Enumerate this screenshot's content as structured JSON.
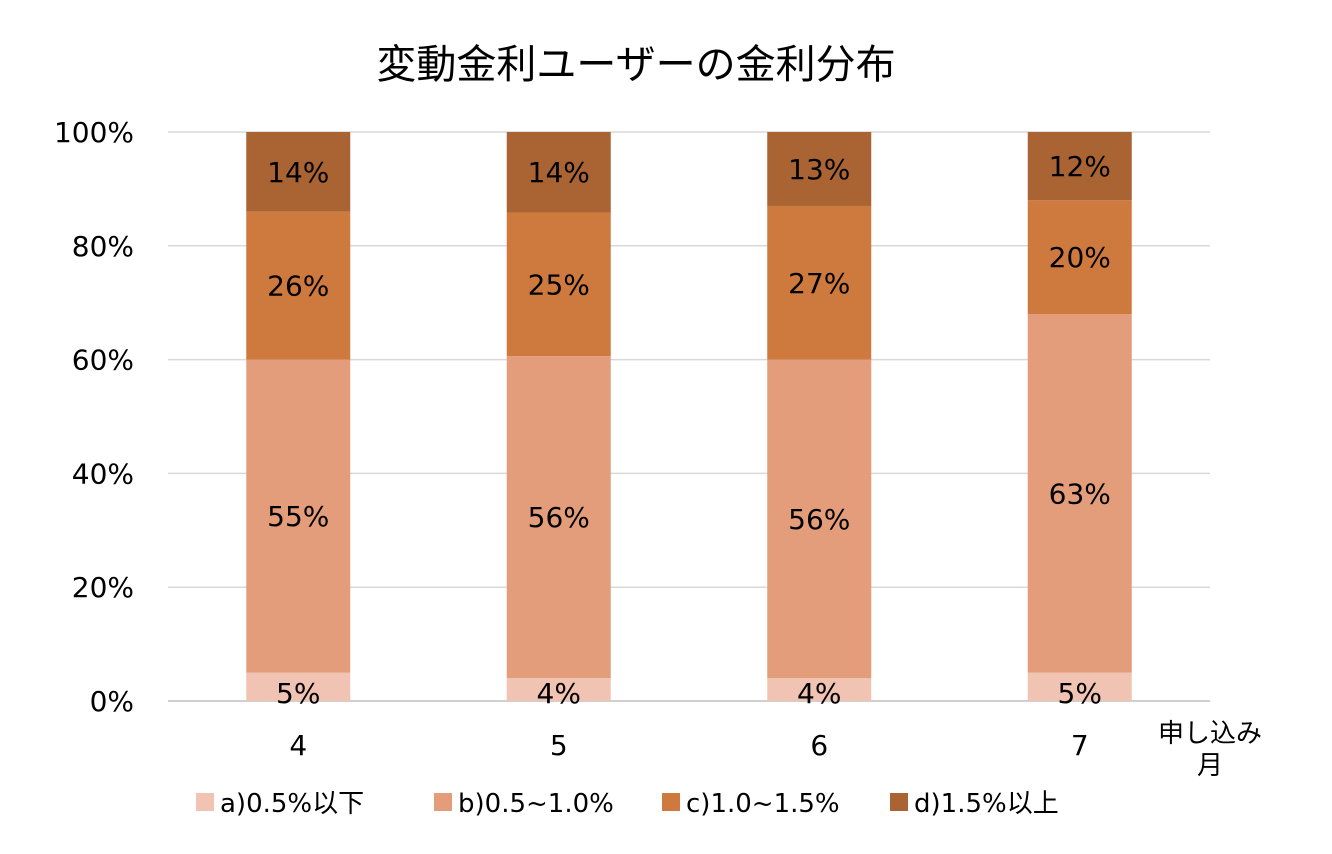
{
  "chart_data": {
    "type": "bar",
    "stacked": true,
    "title": "変動金利ユーザーの金利分布",
    "xlabel": "申し込み月",
    "categories": [
      "4",
      "5",
      "6",
      "7"
    ],
    "series": [
      {
        "name": "a)0.5%以下",
        "color": "#f0c3b3",
        "values": [
          5,
          4,
          4,
          5
        ],
        "labels": [
          "5%",
          "4%",
          "4%",
          "5%"
        ]
      },
      {
        "name": "b)0.5~1.0%",
        "color": "#e49d7a",
        "values": [
          55,
          56,
          56,
          63
        ],
        "labels": [
          "55%",
          "56%",
          "56%",
          "63%"
        ]
      },
      {
        "name": "c)1.0~1.5%",
        "color": "#ce793e",
        "values": [
          26,
          25,
          27,
          20
        ],
        "labels": [
          "26%",
          "25%",
          "27%",
          "20%"
        ]
      },
      {
        "name": "d)1.5%以上",
        "color": "#aa6433",
        "values": [
          14,
          14,
          13,
          12
        ],
        "labels": [
          "14%",
          "14%",
          "13%",
          "12%"
        ]
      }
    ],
    "ylim": [
      0,
      100
    ],
    "yticks": [
      "0%",
      "20%",
      "40%",
      "60%",
      "80%",
      "100%"
    ],
    "grid": true,
    "legend": "bottom"
  }
}
